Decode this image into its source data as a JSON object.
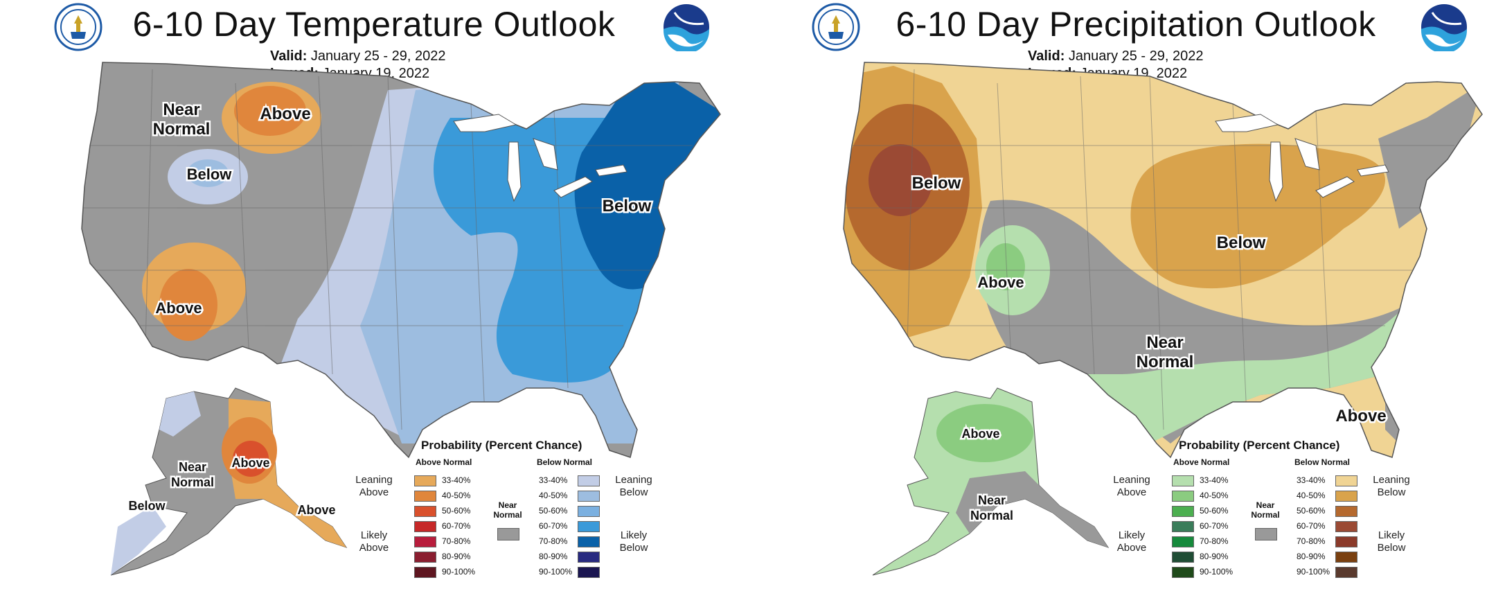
{
  "left": {
    "title": "6-10 Day Temperature Outlook",
    "valid_label": "Valid:",
    "valid_value": "January 25 - 29, 2022",
    "issued_label": "Issued:",
    "issued_value": "January 19, 2022",
    "logo_left": "doc-seal-icon",
    "logo_right": "noaa-logo-icon",
    "map_labels": {
      "near_normal_1": "Near",
      "near_normal_2": "Normal",
      "above_nw": "Above",
      "below_west": "Below",
      "above_sw": "Above",
      "below_ne": "Below",
      "ak_near_1": "Near",
      "ak_near_2": "Normal",
      "ak_above": "Above",
      "ak_below": "Below",
      "ak_above_se": "Above"
    },
    "legend": {
      "title": "Probability (Percent Chance)",
      "above_header": "Above Normal",
      "below_header": "Below Normal",
      "near_1": "Near",
      "near_2": "Normal",
      "leaning_above_1": "Leaning",
      "leaning_above_2": "Above",
      "likely_above_1": "Likely",
      "likely_above_2": "Above",
      "leaning_below_1": "Leaning",
      "leaning_below_2": "Below",
      "likely_below_1": "Likely",
      "likely_below_2": "Below",
      "ranges": [
        "33-40%",
        "40-50%",
        "50-60%",
        "60-70%",
        "70-80%",
        "80-90%",
        "90-100%"
      ],
      "above_colors": [
        "#e6a95a",
        "#e0863c",
        "#d9502c",
        "#c62828",
        "#b81d3c",
        "#8a1e30",
        "#5e1620"
      ],
      "below_colors": [
        "#c2cde6",
        "#9dbde0",
        "#7bb0e0",
        "#3a9ad9",
        "#0a61a8",
        "#282a80",
        "#1a1550"
      ],
      "near_color": "#999999"
    }
  },
  "right": {
    "title": "6-10 Day Precipitation Outlook",
    "valid_label": "Valid:",
    "valid_value": "January 25 - 29, 2022",
    "issued_label": "Issued:",
    "issued_value": "January 19, 2022",
    "logo_left": "doc-seal-icon",
    "logo_right": "noaa-logo-icon",
    "map_labels": {
      "below_west": "Below",
      "above_central": "Above",
      "below_east": "Below",
      "near_1": "Near",
      "near_2": "Normal",
      "above_fl": "Above",
      "ak_above": "Above",
      "ak_near_1": "Near",
      "ak_near_2": "Normal"
    },
    "legend": {
      "title": "Probability (Percent Chance)",
      "above_header": "Above Normal",
      "below_header": "Below Normal",
      "near_1": "Near",
      "near_2": "Normal",
      "leaning_above_1": "Leaning",
      "leaning_above_2": "Above",
      "likely_above_1": "Likely",
      "likely_above_2": "Above",
      "leaning_below_1": "Leaning",
      "leaning_below_2": "Below",
      "likely_below_1": "Likely",
      "likely_below_2": "Below",
      "ranges": [
        "33-40%",
        "40-50%",
        "50-60%",
        "60-70%",
        "70-80%",
        "80-90%",
        "90-100%"
      ],
      "above_colors": [
        "#b5dfae",
        "#8bcc80",
        "#4caf50",
        "#3a7d5a",
        "#168a3c",
        "#1f4d35",
        "#1f4a1a"
      ],
      "below_colors": [
        "#f0d494",
        "#d9a34c",
        "#b5692e",
        "#9b4a34",
        "#8b3a2a",
        "#7a4010",
        "#5a3a2e"
      ],
      "near_color": "#999999"
    }
  }
}
